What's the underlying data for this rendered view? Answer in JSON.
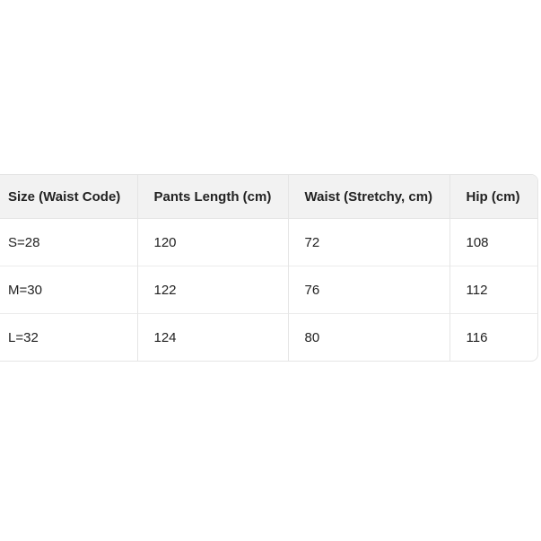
{
  "table": {
    "headers": [
      "Size (Waist Code)",
      "Pants Length (cm)",
      "Waist (Stretchy, cm)",
      "Hip (cm)"
    ],
    "rows": [
      [
        "S=28",
        "120",
        "72",
        "108"
      ],
      [
        "M=30",
        "122",
        "76",
        "112"
      ],
      [
        "L=32",
        "124",
        "80",
        "116"
      ]
    ]
  }
}
